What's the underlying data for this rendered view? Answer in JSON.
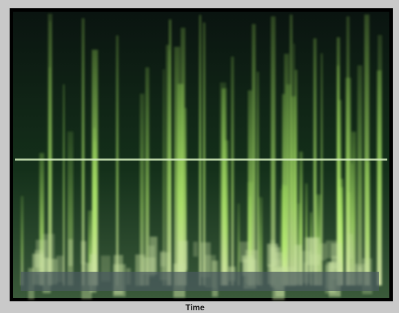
{
  "caption": "Time"
}
